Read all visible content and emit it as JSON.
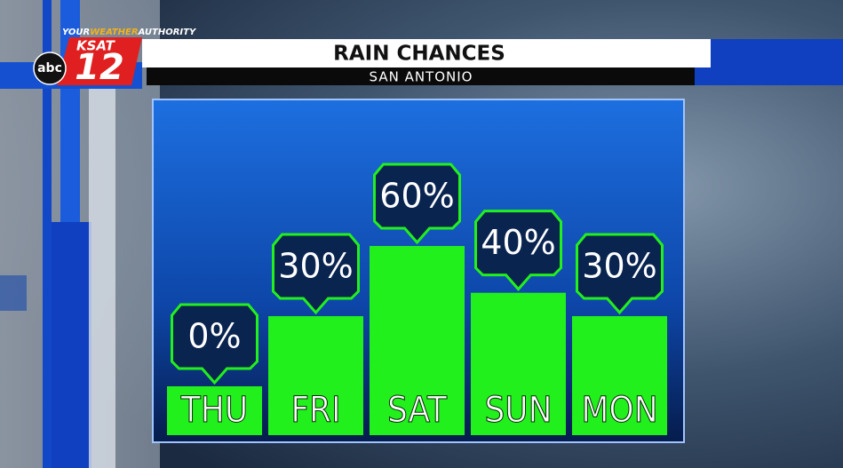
{
  "branding": {
    "tagline_your": "YOUR",
    "tagline_weather": "WEATHER",
    "tagline_authority": "AUTHORITY",
    "station": "KSAT",
    "channel": "12",
    "network": "abc"
  },
  "chart_data": {
    "type": "bar",
    "title": "RAIN CHANCES",
    "subtitle": "SAN ANTONIO",
    "categories": [
      "THU",
      "FRI",
      "SAT",
      "SUN",
      "MON"
    ],
    "values": [
      0,
      30,
      60,
      40,
      30
    ],
    "value_labels": [
      "0%",
      "30%",
      "60%",
      "40%",
      "30%"
    ],
    "color": "#22f01c"
  }
}
